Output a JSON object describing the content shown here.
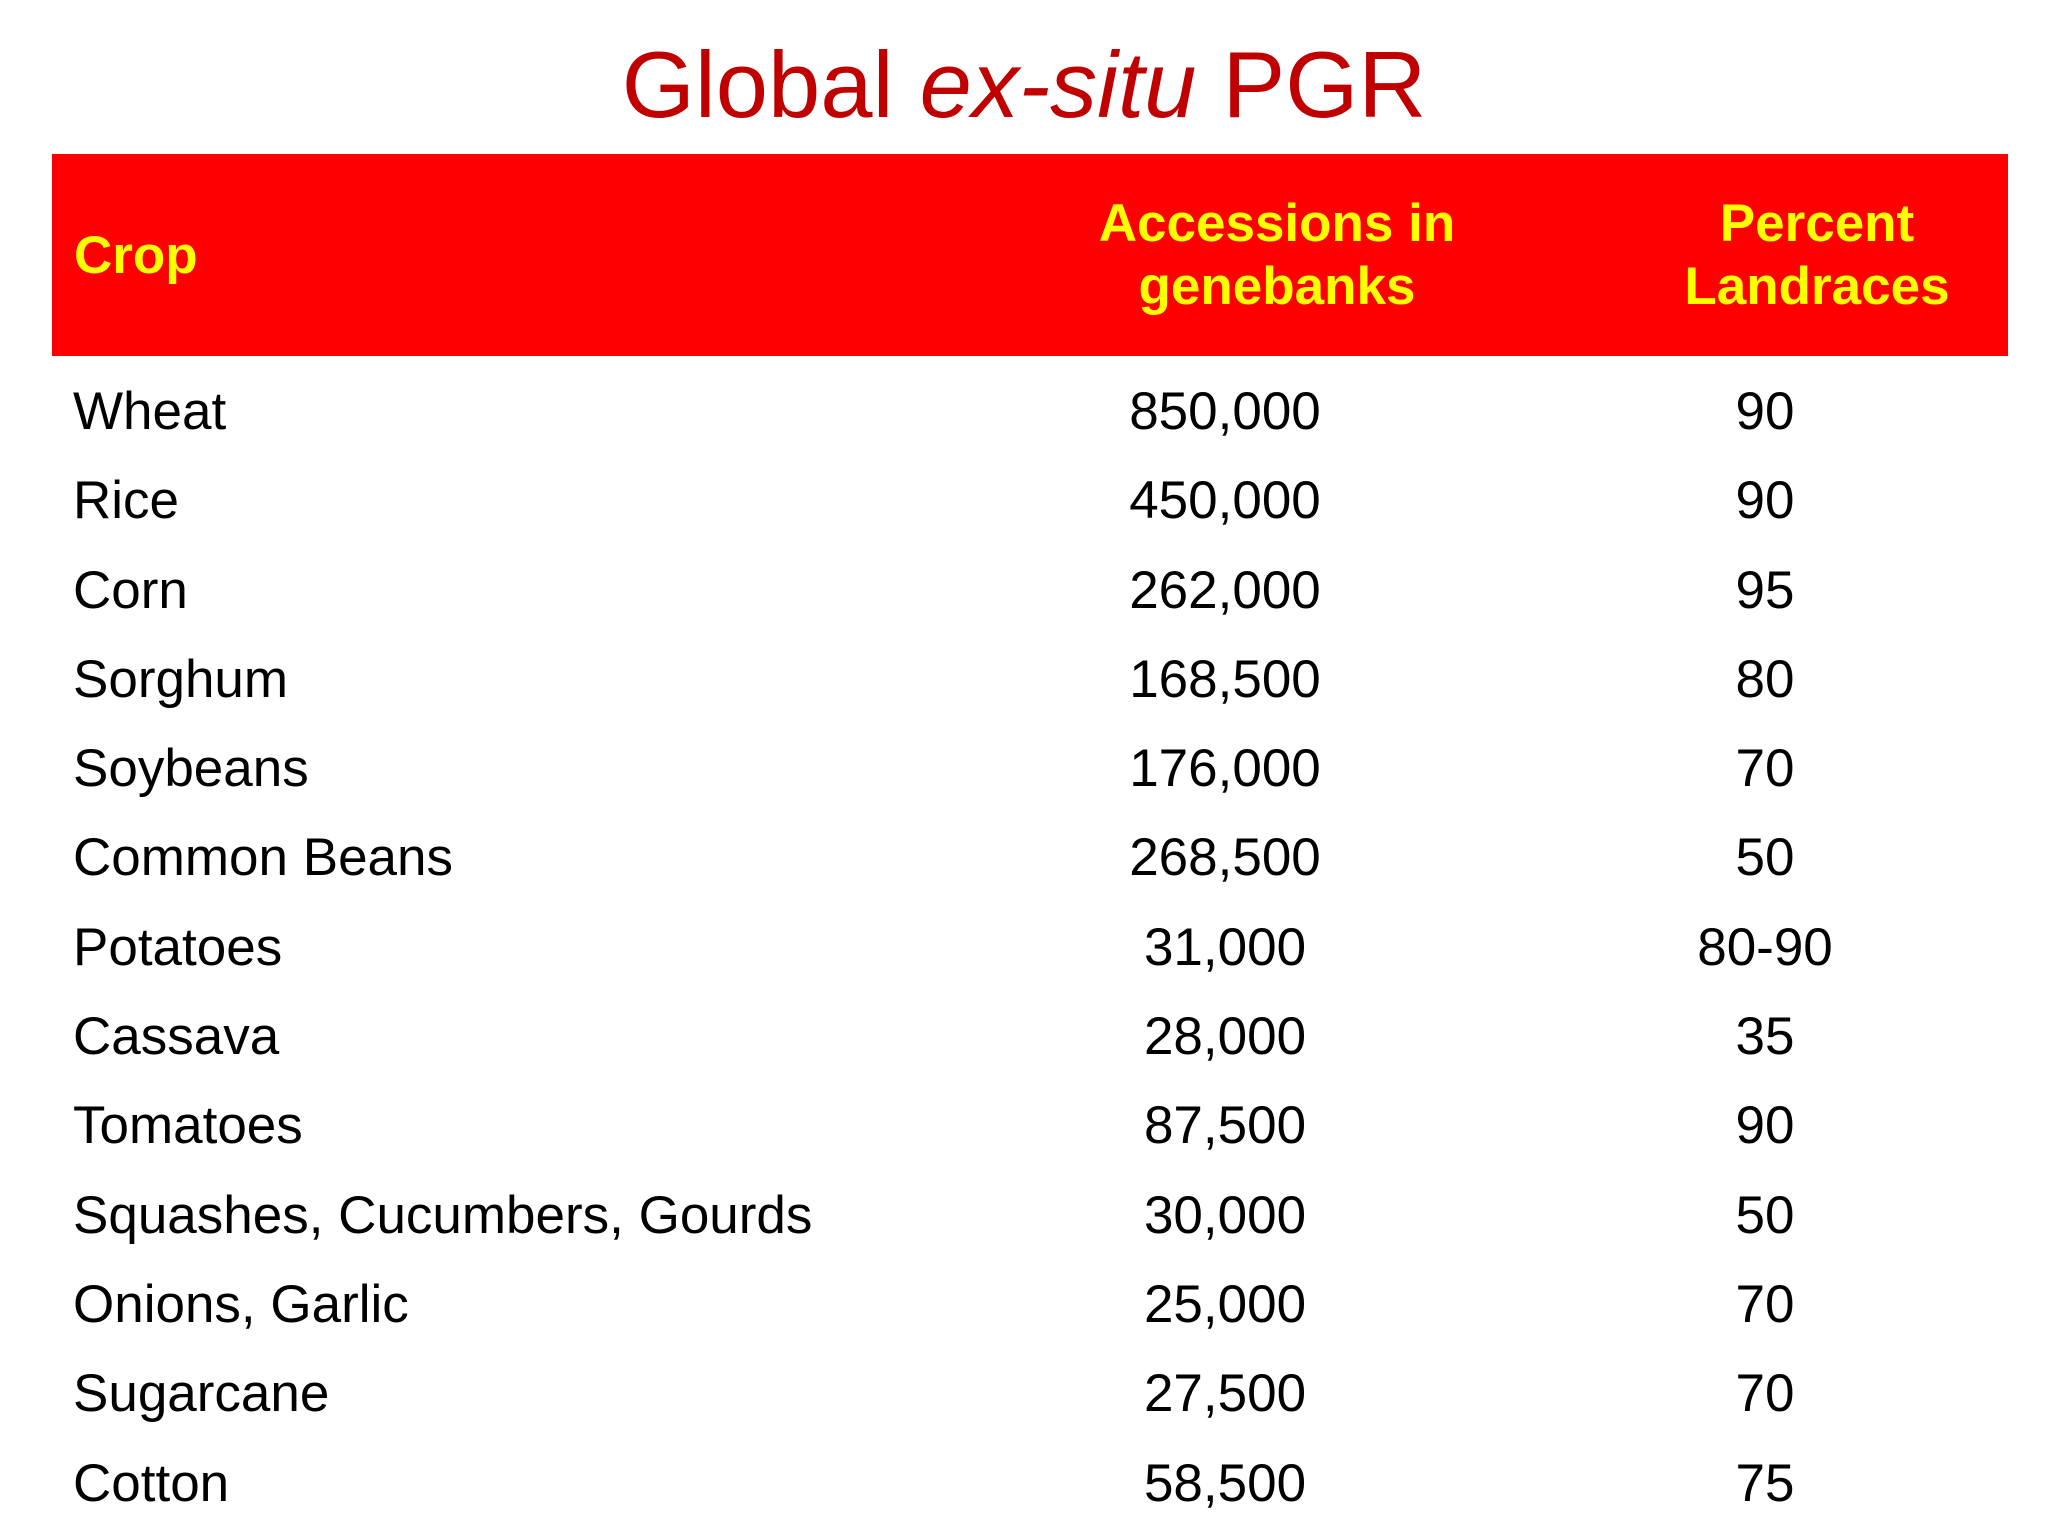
{
  "title": {
    "prefix": "Global ",
    "italic": "ex-situ",
    "suffix": " PGR"
  },
  "table": {
    "headers": {
      "crop": "Crop",
      "accessions_line1": "Accessions in",
      "accessions_line2": "genebanks",
      "percent_line1": "Percent",
      "percent_line2": "Landraces"
    },
    "rows": [
      {
        "crop": "Wheat",
        "accessions": "850,000",
        "percent": "90"
      },
      {
        "crop": "Rice",
        "accessions": "450,000",
        "percent": "90"
      },
      {
        "crop": "Corn",
        "accessions": "262,000",
        "percent": "95"
      },
      {
        "crop": "Sorghum",
        "accessions": "168,500",
        "percent": "80"
      },
      {
        "crop": "Soybeans",
        "accessions": "176,000",
        "percent": "70"
      },
      {
        "crop": "Common Beans",
        "accessions": "268,500",
        "percent": "50"
      },
      {
        "crop": "Potatoes",
        "accessions": "31,000",
        "percent": "80-90"
      },
      {
        "crop": "Cassava",
        "accessions": "28,000",
        "percent": "35"
      },
      {
        "crop": "Tomatoes",
        "accessions": "87,500",
        "percent": "90"
      },
      {
        "crop": "Squashes, Cucumbers, Gourds",
        "accessions": "30,000",
        "percent": "50"
      },
      {
        "crop": "Onions, Garlic",
        "accessions": "25,000",
        "percent": "70"
      },
      {
        "crop": "Sugarcane",
        "accessions": "27,500",
        "percent": "70"
      },
      {
        "crop": "Cotton",
        "accessions": "58,500",
        "percent": "75"
      }
    ]
  },
  "colors": {
    "title": "#c00000",
    "header_background": "#ff0000",
    "header_text": "#ffff00",
    "body_text": "#000000"
  }
}
